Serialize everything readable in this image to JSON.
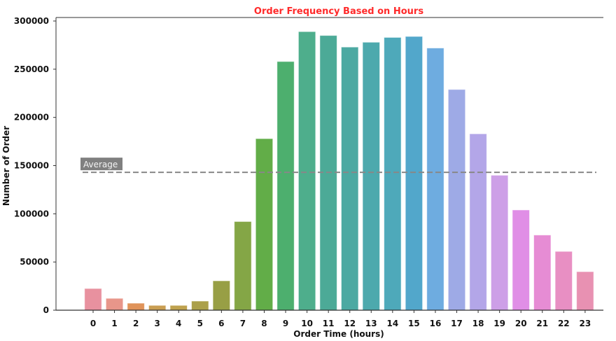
{
  "chart_data": {
    "type": "bar",
    "title": "Order Frequency Based on Hours",
    "xlabel": "Order Time (hours)",
    "ylabel": "Number of Order",
    "categories": [
      "0",
      "1",
      "2",
      "3",
      "4",
      "5",
      "6",
      "7",
      "8",
      "9",
      "10",
      "11",
      "12",
      "13",
      "14",
      "15",
      "16",
      "17",
      "18",
      "19",
      "20",
      "21",
      "22",
      "23"
    ],
    "values": [
      22500,
      12300,
      7300,
      5000,
      5000,
      9500,
      30500,
      92000,
      178000,
      258000,
      289000,
      285000,
      273000,
      278000,
      283000,
      284000,
      272000,
      229000,
      183000,
      140000,
      104000,
      78000,
      61000,
      40000
    ],
    "colors": [
      "#e8919f",
      "#e8968a",
      "#e0935a",
      "#c99e52",
      "#bfa24e",
      "#aba04a",
      "#989f45",
      "#84a646",
      "#62ad48",
      "#4daf6e",
      "#4eae8c",
      "#4caa97",
      "#4ca9a2",
      "#4da9ad",
      "#4ea9ba",
      "#52a7cb",
      "#6eace0",
      "#9eaae6",
      "#b3a6e8",
      "#cd9fe7",
      "#e08ee6",
      "#e68cd4",
      "#e88fc3",
      "#e891b2"
    ],
    "yticks": [
      0,
      50000,
      100000,
      150000,
      200000,
      250000,
      300000
    ],
    "ylim": [
      0,
      300000
    ],
    "grid": false,
    "average": {
      "label": "Average",
      "value": 143000,
      "color": "#888888"
    }
  }
}
